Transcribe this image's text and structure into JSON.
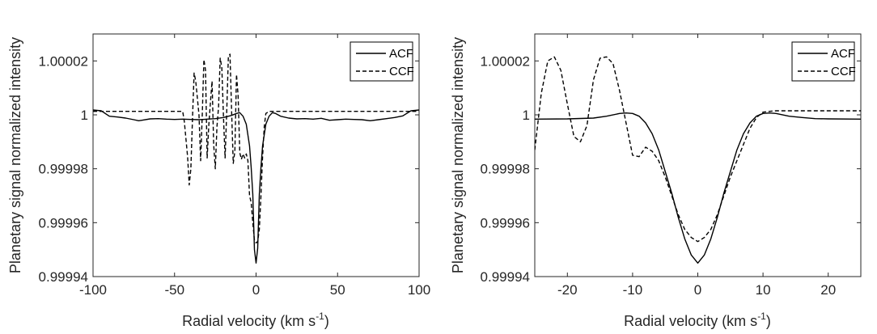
{
  "chart_data": [
    {
      "type": "line",
      "xlabel": "Radial velocity (km s",
      "xlabel_sup": "-1",
      "xlabel_close": ")",
      "ylabel": "Planetary signal normalized intensity",
      "xlim": [
        -100,
        100
      ],
      "ylim": [
        0.99994,
        1.00003
      ],
      "xticks": [
        -100,
        -50,
        0,
        50,
        100
      ],
      "xtick_labels": [
        "-100",
        "-50",
        "0",
        "50",
        "100"
      ],
      "yticks": [
        0.99994,
        0.99996,
        0.99998,
        1.0,
        1.00002
      ],
      "ytick_labels": [
        "0.99994",
        "0.99996",
        "0.99998",
        "1",
        "1.00002"
      ],
      "legend": {
        "position": "top-right"
      },
      "grid": false,
      "series": [
        {
          "name": "ACF",
          "style": "solid",
          "color": "#000000",
          "x": [
            -100,
            -95,
            -90,
            -85,
            -80,
            -75,
            -72,
            -70,
            -65,
            -60,
            -55,
            -50,
            -45,
            -40,
            -35,
            -30,
            -25,
            -20,
            -15,
            -12,
            -10,
            -8,
            -6,
            -4,
            -3,
            -2,
            -1,
            0,
            1,
            2,
            3,
            4,
            6,
            8,
            10,
            12,
            15,
            20,
            25,
            30,
            35,
            40,
            45,
            50,
            55,
            60,
            65,
            70,
            75,
            80,
            85,
            90,
            95,
            100
          ],
          "y": [
            1.0000018,
            1.0000015,
            0.9999995,
            0.9999992,
            0.9999988,
            0.9999982,
            0.9999978,
            0.999998,
            0.9999985,
            0.9999986,
            0.9999984,
            0.9999983,
            0.9999984,
            0.9999983,
            0.9999982,
            0.9999984,
            0.9999986,
            0.999999,
            0.9999998,
            1.0000005,
            1.0000008,
            0.9999995,
            0.9999965,
            0.9999885,
            0.9999805,
            0.9999705,
            0.99995,
            0.999945,
            0.9999505,
            0.9999705,
            0.9999805,
            0.9999885,
            0.9999965,
            0.9999995,
            1.0000008,
            1.0000005,
            0.9999995,
            0.9999988,
            0.9999985,
            0.9999986,
            0.9999984,
            0.9999987,
            0.999998,
            0.9999982,
            0.9999984,
            0.9999983,
            0.9999982,
            0.9999978,
            0.9999982,
            0.9999986,
            0.999999,
            0.9999996,
            1.0000015,
            1.0000018
          ]
        },
        {
          "name": "CCF",
          "style": "dashed",
          "color": "#000000",
          "x": [
            -100,
            -90,
            -80,
            -70,
            -60,
            -50,
            -47,
            -45,
            -44,
            -42,
            -41,
            -40,
            -39,
            -38,
            -37,
            -35,
            -34,
            -33,
            -32,
            -31,
            -30,
            -29,
            -28,
            -27,
            -26,
            -25,
            -24,
            -23,
            -22,
            -21,
            -20,
            -19,
            -18,
            -17,
            -16,
            -15,
            -14,
            -13,
            -12,
            -11,
            -10,
            -9,
            -8,
            -7,
            -6,
            -5,
            -4,
            -3,
            -2,
            -1,
            0,
            1,
            2,
            3,
            4,
            5,
            6,
            8,
            10,
            15,
            20,
            30,
            40,
            50,
            60,
            65,
            70,
            75,
            80,
            90,
            100
          ],
          "y": [
            1.0000013,
            1.0000013,
            1.0000013,
            1.0000013,
            1.0000013,
            1.0000013,
            1.0000013,
            1.0000013,
            0.9999975,
            0.9999845,
            0.999974,
            0.99998,
            0.9999985,
            1.0000155,
            1.0000125,
            0.9999999,
            0.999983,
            0.9999999,
            1.0000205,
            1.0000165,
            0.999984,
            0.999996,
            1.0000045,
            1.0000125,
            0.999989,
            0.99998,
            0.9999955,
            1.000003,
            1.000021,
            1.0000175,
            0.9999995,
            0.999984,
            1.000001,
            1.0000215,
            1.0000225,
            1.0000015,
            0.999982,
            0.9999865,
            1.000015,
            1.000007,
            0.999986,
            0.9999835,
            0.9999855,
            0.999984,
            0.9999855,
            0.999983,
            0.99997,
            0.9999675,
            0.99996,
            0.9999535,
            0.9999525,
            0.999953,
            0.9999575,
            0.99997,
            0.9999845,
            0.9999955,
            1.0000005,
            1.0000013,
            1.0000013,
            1.0000013,
            1.0000013,
            1.0000013,
            1.0000013,
            1.0000013,
            1.0000013,
            1.0000013,
            1.0000013,
            1.0000013,
            1.0000013,
            1.0000013,
            1.0000013
          ]
        }
      ]
    },
    {
      "type": "line",
      "xlabel": "Radial velocity (km s",
      "xlabel_sup": "-1",
      "xlabel_close": ")",
      "ylabel": "Planetary signal normalized intensity",
      "xlim": [
        -25,
        25
      ],
      "ylim": [
        0.99994,
        1.00003
      ],
      "xticks": [
        -20,
        -10,
        0,
        10,
        20
      ],
      "xtick_labels": [
        "-20",
        "-10",
        "0",
        "10",
        "20"
      ],
      "yticks": [
        0.99994,
        0.99996,
        0.99998,
        1.0,
        1.00002
      ],
      "ytick_labels": [
        "0.99994",
        "0.99996",
        "0.99998",
        "1",
        "1.00002"
      ],
      "legend": {
        "position": "top-right"
      },
      "grid": false,
      "series": [
        {
          "name": "ACF",
          "style": "solid",
          "color": "#000000",
          "x": [
            -25,
            -20,
            -16,
            -14,
            -12,
            -11,
            -10,
            -9,
            -8,
            -7,
            -6,
            -5,
            -4,
            -3,
            -2,
            -1,
            0,
            1,
            2,
            3,
            4,
            5,
            6,
            7,
            8,
            9,
            10,
            11,
            12,
            14,
            16,
            18,
            20,
            25
          ],
          "y": [
            0.9999984,
            0.9999985,
            0.9999988,
            0.9999995,
            1.0000005,
            1.0000007,
            1.0000005,
            0.9999995,
            0.999997,
            0.999993,
            0.999987,
            0.999979,
            0.999971,
            0.999962,
            0.999954,
            0.999948,
            0.999945,
            0.999948,
            0.999954,
            0.999962,
            0.999971,
            0.999979,
            0.999987,
            0.999993,
            0.999997,
            0.9999995,
            1.0000005,
            1.0000007,
            1.0000005,
            0.9999995,
            0.999999,
            0.9999986,
            0.9999985,
            0.9999984
          ]
        },
        {
          "name": "CCF",
          "style": "dashed",
          "color": "#000000",
          "x": [
            -25,
            -24,
            -23,
            -22,
            -21,
            -20,
            -19,
            -18,
            -17,
            -16,
            -15,
            -14,
            -13,
            -12,
            -11,
            -10,
            -9,
            -8,
            -7,
            -6,
            -5,
            -4,
            -3,
            -2,
            -1,
            0,
            1,
            2,
            3,
            4,
            5,
            6,
            7,
            8,
            9,
            10,
            11,
            12,
            15,
            20,
            25
          ],
          "y": [
            0.999987,
            1.000008,
            1.00002,
            1.0000215,
            1.0000165,
            1.000004,
            0.999992,
            0.99999,
            0.999996,
            1.000013,
            1.000021,
            1.0000215,
            1.000019,
            1.000009,
            0.999997,
            0.999985,
            0.9999845,
            0.999988,
            0.9999865,
            0.999983,
            0.999977,
            0.99997,
            0.999963,
            0.9999575,
            0.9999545,
            0.999953,
            0.9999545,
            0.9999575,
            0.999963,
            0.99997,
            0.999977,
            0.999983,
            0.999989,
            0.999995,
            0.999999,
            1.000001,
            1.0000013,
            1.0000015,
            1.0000015,
            1.0000015,
            1.0000015
          ]
        }
      ]
    }
  ]
}
